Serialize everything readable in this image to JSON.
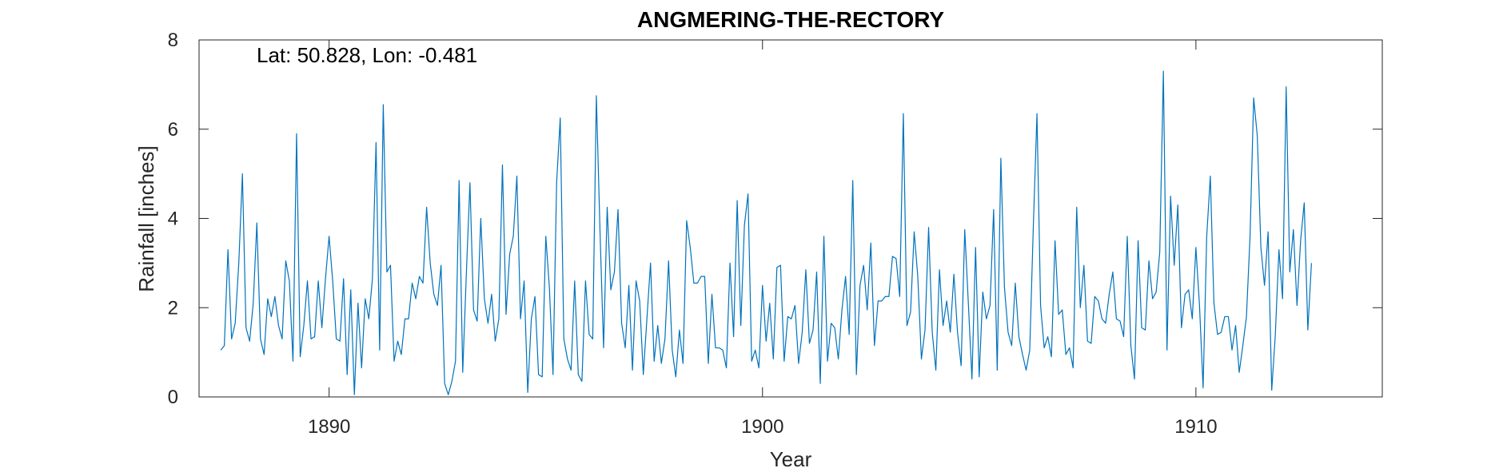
{
  "chart_data": {
    "type": "line",
    "title": "ANGMERING-THE-RECTORY",
    "xlabel": "Year",
    "ylabel": "Rainfall [inches]",
    "annotation": "Lat: 50.828, Lon: -0.481",
    "xlim": [
      1887.0,
      1914.3
    ],
    "ylim": [
      0,
      8
    ],
    "xticks": [
      1890,
      1900,
      1910
    ],
    "yticks": [
      0,
      2,
      4,
      6,
      8
    ],
    "xtick_labels": [
      "1890",
      "1900",
      "1910"
    ],
    "ytick_labels": [
      "0",
      "2",
      "4",
      "6",
      "8"
    ],
    "grid": false,
    "line_color": "#0072BD",
    "series": [
      {
        "x_start": 1887.5,
        "x_step": 0.08333,
        "values": [
          1.05,
          1.15,
          3.3,
          1.3,
          1.65,
          3.0,
          5.0,
          1.55,
          1.25,
          2.1,
          3.9,
          1.3,
          0.95,
          2.2,
          1.8,
          2.25,
          1.6,
          1.3,
          3.05,
          2.6,
          0.8,
          5.9,
          0.9,
          1.6,
          2.6,
          1.3,
          1.35,
          2.6,
          1.55,
          2.65,
          3.6,
          2.6,
          1.3,
          1.25,
          2.65,
          0.5,
          2.4,
          0.05,
          2.1,
          0.65,
          2.2,
          1.75,
          2.65,
          5.7,
          1.05,
          6.55,
          2.8,
          2.95,
          0.8,
          1.25,
          0.95,
          1.75,
          1.75,
          2.55,
          2.2,
          2.7,
          2.55,
          4.25,
          3.0,
          2.3,
          2.05,
          2.95,
          0.3,
          0.05,
          0.35,
          0.8,
          4.85,
          0.55,
          2.75,
          4.8,
          1.95,
          1.7,
          4.0,
          2.2,
          1.65,
          2.3,
          1.25,
          1.75,
          5.2,
          1.85,
          3.2,
          3.6,
          4.95,
          1.75,
          2.6,
          0.1,
          1.75,
          2.25,
          0.5,
          0.45,
          3.6,
          2.45,
          0.5,
          4.8,
          6.25,
          1.3,
          0.85,
          0.6,
          2.6,
          0.5,
          0.35,
          2.6,
          1.4,
          1.3,
          6.75,
          3.75,
          1.1,
          4.25,
          2.4,
          2.8,
          4.2,
          1.65,
          1.1,
          2.5,
          0.6,
          2.6,
          2.15,
          0.5,
          1.75,
          3.0,
          0.8,
          1.6,
          0.75,
          1.3,
          3.05,
          1.05,
          0.45,
          1.5,
          0.75,
          3.95,
          3.35,
          2.55,
          2.55,
          2.7,
          2.7,
          0.75,
          2.3,
          1.1,
          1.1,
          1.05,
          0.65,
          3.0,
          1.35,
          4.4,
          1.6,
          3.85,
          4.55,
          0.8,
          1.05,
          0.65,
          2.5,
          1.25,
          2.1,
          0.85,
          2.9,
          2.95,
          0.8,
          1.8,
          1.75,
          2.05,
          0.75,
          1.45,
          2.85,
          1.2,
          1.5,
          2.8,
          0.3,
          3.6,
          0.8,
          1.65,
          1.55,
          0.85,
          1.95,
          2.7,
          1.4,
          4.85,
          0.5,
          2.5,
          2.95,
          1.95,
          3.45,
          1.15,
          2.15,
          2.15,
          2.25,
          2.25,
          3.15,
          3.1,
          2.25,
          6.35,
          1.6,
          1.9,
          3.7,
          2.7,
          0.85,
          1.5,
          3.8,
          1.45,
          0.6,
          2.85,
          1.6,
          2.15,
          1.45,
          2.75,
          1.45,
          0.7,
          3.75,
          2.1,
          0.4,
          3.35,
          0.45,
          2.35,
          1.75,
          2.05,
          4.2,
          0.6,
          5.35,
          2.45,
          1.45,
          1.15,
          2.55,
          1.35,
          0.95,
          0.6,
          1.05,
          3.85,
          6.35,
          2.05,
          1.1,
          1.35,
          0.9,
          3.5,
          1.85,
          1.95,
          0.95,
          1.1,
          0.65,
          4.25,
          2.0,
          2.95,
          1.25,
          1.2,
          2.25,
          2.15,
          1.75,
          1.65,
          2.3,
          2.8,
          1.75,
          1.7,
          1.35,
          3.6,
          1.15,
          0.4,
          3.5,
          1.55,
          1.5,
          3.05,
          2.2,
          2.35,
          3.25,
          7.3,
          1.05,
          4.5,
          2.95,
          4.3,
          1.55,
          2.3,
          2.4,
          1.75,
          3.35,
          2.05,
          0.2,
          3.6,
          4.95,
          2.1,
          1.4,
          1.45,
          1.8,
          1.8,
          1.05,
          1.6,
          0.55,
          1.15,
          1.8,
          3.6,
          6.7,
          5.85,
          3.35,
          2.5,
          3.7,
          0.15,
          1.4,
          3.3,
          2.2,
          6.95,
          2.8,
          3.75,
          2.05,
          3.5,
          4.35,
          1.5,
          3.0
        ]
      }
    ]
  }
}
